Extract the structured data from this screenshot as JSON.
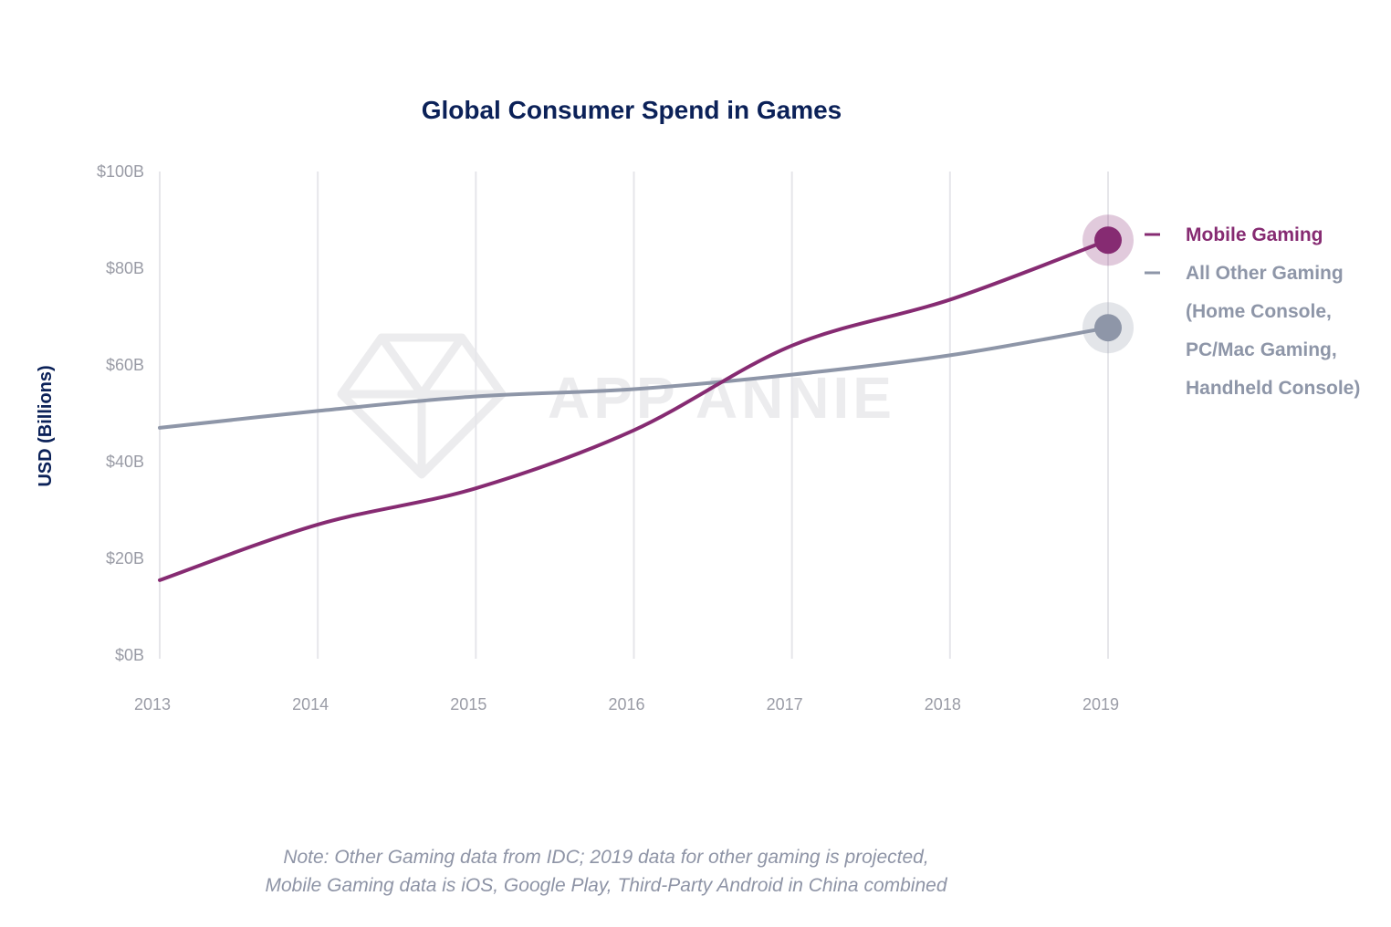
{
  "chart_data": {
    "type": "line",
    "title": "Global Consumer Spend in Games",
    "xlabel": "",
    "ylabel": "USD (Billions)",
    "x": [
      2013,
      2014,
      2015,
      2016,
      2017,
      2018,
      2019
    ],
    "x_tick_labels": [
      "2013",
      "2014",
      "2015",
      "2016",
      "2017",
      "2018",
      "2019"
    ],
    "ylim": [
      0,
      100
    ],
    "y_ticks": [
      0,
      20,
      40,
      60,
      80,
      100
    ],
    "y_tick_labels": [
      "$0B",
      "$20B",
      "$40B",
      "$60B",
      "$80B",
      "$100B"
    ],
    "grid": "vertical",
    "series": [
      {
        "name": "Mobile Gaming",
        "color": "#862b72",
        "values": [
          15.5,
          27,
          34.5,
          46.5,
          64,
          73.5,
          85.8
        ]
      },
      {
        "name": "All Other Gaming",
        "color": "#8e96a8",
        "values": [
          47,
          50.5,
          53.5,
          55,
          58,
          62,
          67.7
        ]
      }
    ],
    "legend": {
      "position": "right",
      "entries": [
        {
          "lines": [
            "Mobile Gaming"
          ],
          "color": "#862b72"
        },
        {
          "lines": [
            "All Other Gaming",
            "(Home Console,",
            "PC/Mac Gaming,",
            "Handheld Console)"
          ],
          "color": "#8e96a8"
        }
      ]
    },
    "note": [
      "Note: Other Gaming data from IDC; 2019 data for other gaming is projected,",
      "Mobile Gaming data is iOS, Google Play, Third-Party Android in China combined"
    ],
    "watermark": "APP ANNIE"
  }
}
